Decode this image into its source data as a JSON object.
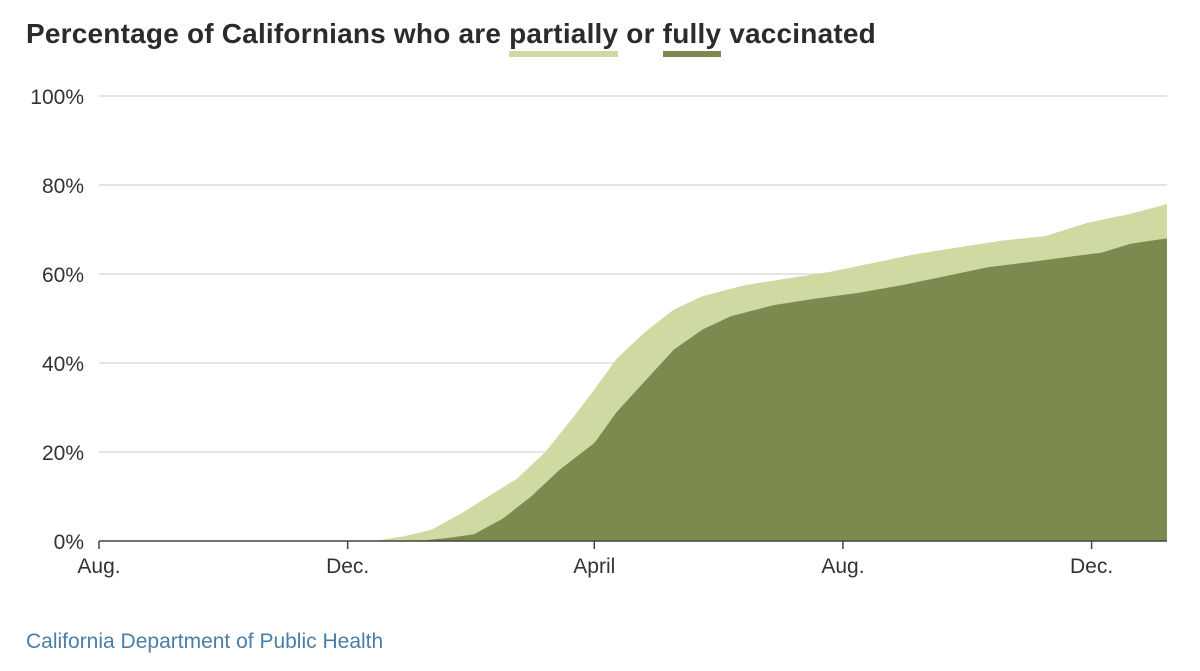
{
  "title": {
    "before": "Percentage of Californians who are ",
    "partially": "partially",
    "middle": " or ",
    "fully": "fully",
    "after": " vaccinated"
  },
  "source": "California Department of Public Health",
  "colors": {
    "partially": "#cfd9a2",
    "fully": "#7c8a4f",
    "grid": "#d4d4d4",
    "axis": "#444444",
    "tick_text": "#333333",
    "title": "#2b2b2b",
    "source": "#4a7ea6"
  },
  "chart_data": {
    "type": "area",
    "title": "Percentage of Californians who are partially or fully vaccinated",
    "xlabel": "",
    "ylabel": "",
    "x_ticks": [
      "Aug.",
      "Dec.",
      "April",
      "Aug.",
      "Dec."
    ],
    "x_tick_dates": [
      "2020-08-01",
      "2020-12-01",
      "2021-04-01",
      "2021-08-01",
      "2021-12-01"
    ],
    "y_ticks": [
      "0%",
      "20%",
      "40%",
      "60%",
      "80%",
      "100%"
    ],
    "y_tick_values": [
      0,
      20,
      40,
      60,
      80,
      100
    ],
    "ylim": [
      0,
      100
    ],
    "xlim": [
      "2020-08-01",
      "2022-01-07"
    ],
    "grid": "horizontal",
    "legend": "inline in title",
    "series": [
      {
        "name": "partially",
        "points": [
          [
            "2020-12-14",
            0
          ],
          [
            "2020-12-28",
            1
          ],
          [
            "2021-01-11",
            2.5
          ],
          [
            "2021-01-25",
            6
          ],
          [
            "2021-02-08",
            10
          ],
          [
            "2021-02-22",
            14
          ],
          [
            "2021-03-08",
            20
          ],
          [
            "2021-03-22",
            28
          ],
          [
            "2021-04-01",
            34
          ],
          [
            "2021-04-12",
            41
          ],
          [
            "2021-04-26",
            47
          ],
          [
            "2021-05-10",
            52
          ],
          [
            "2021-05-24",
            55
          ],
          [
            "2021-06-14",
            57.5
          ],
          [
            "2021-07-05",
            59
          ],
          [
            "2021-07-26",
            60.5
          ],
          [
            "2021-08-16",
            62.5
          ],
          [
            "2021-09-06",
            64.5
          ],
          [
            "2021-09-27",
            66
          ],
          [
            "2021-10-18",
            67.5
          ],
          [
            "2021-11-08",
            68.5
          ],
          [
            "2021-11-29",
            71.5
          ],
          [
            "2021-12-20",
            73.5
          ],
          [
            "2022-01-07",
            75.7
          ]
        ]
      },
      {
        "name": "fully",
        "points": [
          [
            "2021-01-04",
            0
          ],
          [
            "2021-01-18",
            0.6
          ],
          [
            "2021-02-01",
            1.5
          ],
          [
            "2021-02-15",
            5
          ],
          [
            "2021-03-01",
            10
          ],
          [
            "2021-03-15",
            16
          ],
          [
            "2021-04-01",
            22
          ],
          [
            "2021-04-12",
            29
          ],
          [
            "2021-04-26",
            36
          ],
          [
            "2021-05-10",
            43
          ],
          [
            "2021-05-24",
            47.5
          ],
          [
            "2021-06-07",
            50.5
          ],
          [
            "2021-06-28",
            53
          ],
          [
            "2021-07-19",
            54.5
          ],
          [
            "2021-08-09",
            55.8
          ],
          [
            "2021-08-30",
            57.5
          ],
          [
            "2021-09-20",
            59.5
          ],
          [
            "2021-10-11",
            61.5
          ],
          [
            "2021-11-01",
            62.7
          ],
          [
            "2021-11-22",
            64
          ],
          [
            "2021-12-06",
            64.8
          ],
          [
            "2021-12-20",
            66.8
          ],
          [
            "2022-01-07",
            68
          ]
        ]
      }
    ]
  }
}
